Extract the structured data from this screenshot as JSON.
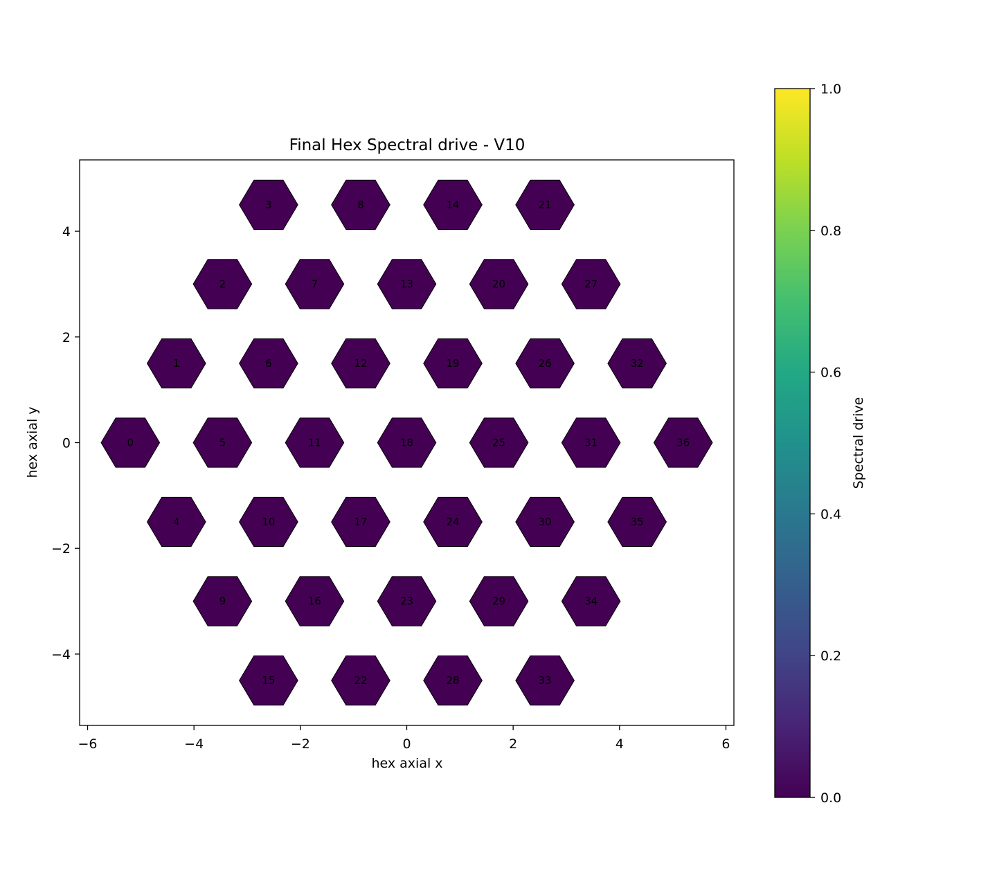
{
  "chart_data": {
    "type": "heatmap",
    "title": "Final Hex Spectral drive - V10",
    "xlabel": "hex axial x",
    "ylabel": "hex axial y",
    "xlim": [
      -6.15,
      6.15
    ],
    "ylim": [
      -5.35,
      5.35
    ],
    "xticks": [
      -6,
      -4,
      -2,
      0,
      2,
      4,
      6
    ],
    "xtick_labels": [
      "−6",
      "−4",
      "−2",
      "0",
      "2",
      "4",
      "6"
    ],
    "yticks": [
      -4,
      -2,
      0,
      2,
      4
    ],
    "ytick_labels": [
      "−4",
      "−2",
      "0",
      "2",
      "4"
    ],
    "colorbar": {
      "label": "Spectral drive",
      "range": [
        0,
        1
      ],
      "ticks": [
        0,
        0.2,
        0.4,
        0.6,
        0.8,
        1.0
      ],
      "tick_labels": [
        "0.0",
        "0.2",
        "0.4",
        "0.6",
        "0.8",
        "1.0"
      ],
      "colormap": "viridis"
    },
    "cells": [
      {
        "id": "0",
        "x": -5.196,
        "y": 0.0,
        "value": 0.0
      },
      {
        "id": "1",
        "x": -4.33,
        "y": 1.5,
        "value": 0.0
      },
      {
        "id": "2",
        "x": -3.464,
        "y": 3.0,
        "value": 0.0
      },
      {
        "id": "3",
        "x": -2.598,
        "y": 4.5,
        "value": 0.0
      },
      {
        "id": "4",
        "x": -4.33,
        "y": -1.5,
        "value": 0.0
      },
      {
        "id": "5",
        "x": -3.464,
        "y": 0.0,
        "value": 0.0
      },
      {
        "id": "6",
        "x": -2.598,
        "y": 1.5,
        "value": 0.0
      },
      {
        "id": "7",
        "x": -1.732,
        "y": 3.0,
        "value": 0.0
      },
      {
        "id": "8",
        "x": -0.866,
        "y": 4.5,
        "value": 0.0
      },
      {
        "id": "9",
        "x": -3.464,
        "y": -3.0,
        "value": 0.0
      },
      {
        "id": "10",
        "x": -2.598,
        "y": -1.5,
        "value": 0.0
      },
      {
        "id": "11",
        "x": -1.732,
        "y": 0.0,
        "value": 0.0
      },
      {
        "id": "12",
        "x": -0.866,
        "y": 1.5,
        "value": 0.0
      },
      {
        "id": "13",
        "x": 0.0,
        "y": 3.0,
        "value": 0.0
      },
      {
        "id": "14",
        "x": 0.866,
        "y": 4.5,
        "value": 0.0
      },
      {
        "id": "15",
        "x": -2.598,
        "y": -4.5,
        "value": 0.0
      },
      {
        "id": "16",
        "x": -1.732,
        "y": -3.0,
        "value": 0.0
      },
      {
        "id": "17",
        "x": -0.866,
        "y": -1.5,
        "value": 0.0
      },
      {
        "id": "18",
        "x": 0.0,
        "y": 0.0,
        "value": 0.0
      },
      {
        "id": "19",
        "x": 0.866,
        "y": 1.5,
        "value": 0.0
      },
      {
        "id": "20",
        "x": 1.732,
        "y": 3.0,
        "value": 0.0
      },
      {
        "id": "21",
        "x": 2.598,
        "y": 4.5,
        "value": 0.0
      },
      {
        "id": "22",
        "x": -0.866,
        "y": -4.5,
        "value": 0.0
      },
      {
        "id": "23",
        "x": 0.0,
        "y": -3.0,
        "value": 0.0
      },
      {
        "id": "24",
        "x": 0.866,
        "y": -1.5,
        "value": 0.0
      },
      {
        "id": "25",
        "x": 1.732,
        "y": 0.0,
        "value": 0.0
      },
      {
        "id": "26",
        "x": 2.598,
        "y": 1.5,
        "value": 0.0
      },
      {
        "id": "27",
        "x": 3.464,
        "y": 3.0,
        "value": 0.0
      },
      {
        "id": "28",
        "x": 0.866,
        "y": -4.5,
        "value": 0.0
      },
      {
        "id": "29",
        "x": 1.732,
        "y": -3.0,
        "value": 0.0
      },
      {
        "id": "30",
        "x": 2.598,
        "y": -1.5,
        "value": 0.0
      },
      {
        "id": "31",
        "x": 3.464,
        "y": 0.0,
        "value": 0.0
      },
      {
        "id": "32",
        "x": 4.33,
        "y": 1.5,
        "value": 0.0
      },
      {
        "id": "33",
        "x": 2.598,
        "y": -4.5,
        "value": 0.0
      },
      {
        "id": "34",
        "x": 3.464,
        "y": -3.0,
        "value": 0.0
      },
      {
        "id": "35",
        "x": 4.33,
        "y": -1.5,
        "value": 0.0
      },
      {
        "id": "36",
        "x": 5.196,
        "y": 0.0,
        "value": 0.0
      }
    ],
    "colors": {
      "cell_fill": "#440154",
      "cell_edge": "#000000"
    }
  }
}
